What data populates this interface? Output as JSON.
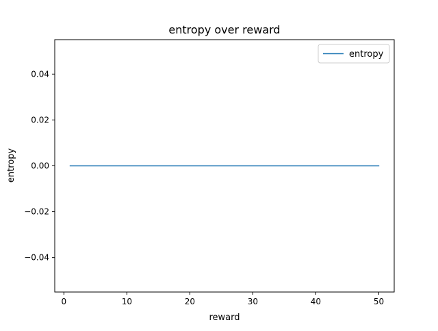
{
  "chart_data": {
    "type": "line",
    "title": "entropy over reward",
    "xlabel": "reward",
    "ylabel": "entropy",
    "xlim": [
      -1.45,
      52.45
    ],
    "ylim": [
      -0.055,
      0.055
    ],
    "xticks": [
      0,
      10,
      20,
      30,
      40,
      50
    ],
    "yticks": [
      -0.04,
      -0.02,
      0.0,
      0.02,
      0.04
    ],
    "xtick_labels": [
      "0",
      "10",
      "20",
      "30",
      "40",
      "50"
    ],
    "ytick_labels": [
      "−0.04",
      "−0.02",
      "0.00",
      "0.02",
      "0.04"
    ],
    "grid": false,
    "legend": {
      "placement": "top-right",
      "entries": [
        "entropy"
      ]
    },
    "series": [
      {
        "name": "entropy",
        "color": "#1f77b4",
        "x": [
          1,
          2,
          3,
          4,
          5,
          6,
          7,
          8,
          9,
          10,
          11,
          12,
          13,
          14,
          15,
          16,
          17,
          18,
          19,
          20,
          21,
          22,
          23,
          24,
          25,
          26,
          27,
          28,
          29,
          30,
          31,
          32,
          33,
          34,
          35,
          36,
          37,
          38,
          39,
          40,
          41,
          42,
          43,
          44,
          45,
          46,
          47,
          48,
          49,
          50
        ],
        "y": [
          0,
          0,
          0,
          0,
          0,
          0,
          0,
          0,
          0,
          0,
          0,
          0,
          0,
          0,
          0,
          0,
          0,
          0,
          0,
          0,
          0,
          0,
          0,
          0,
          0,
          0,
          0,
          0,
          0,
          0,
          0,
          0,
          0,
          0,
          0,
          0,
          0,
          0,
          0,
          0,
          0,
          0,
          0,
          0,
          0,
          0,
          0,
          0,
          0,
          0
        ]
      }
    ]
  }
}
